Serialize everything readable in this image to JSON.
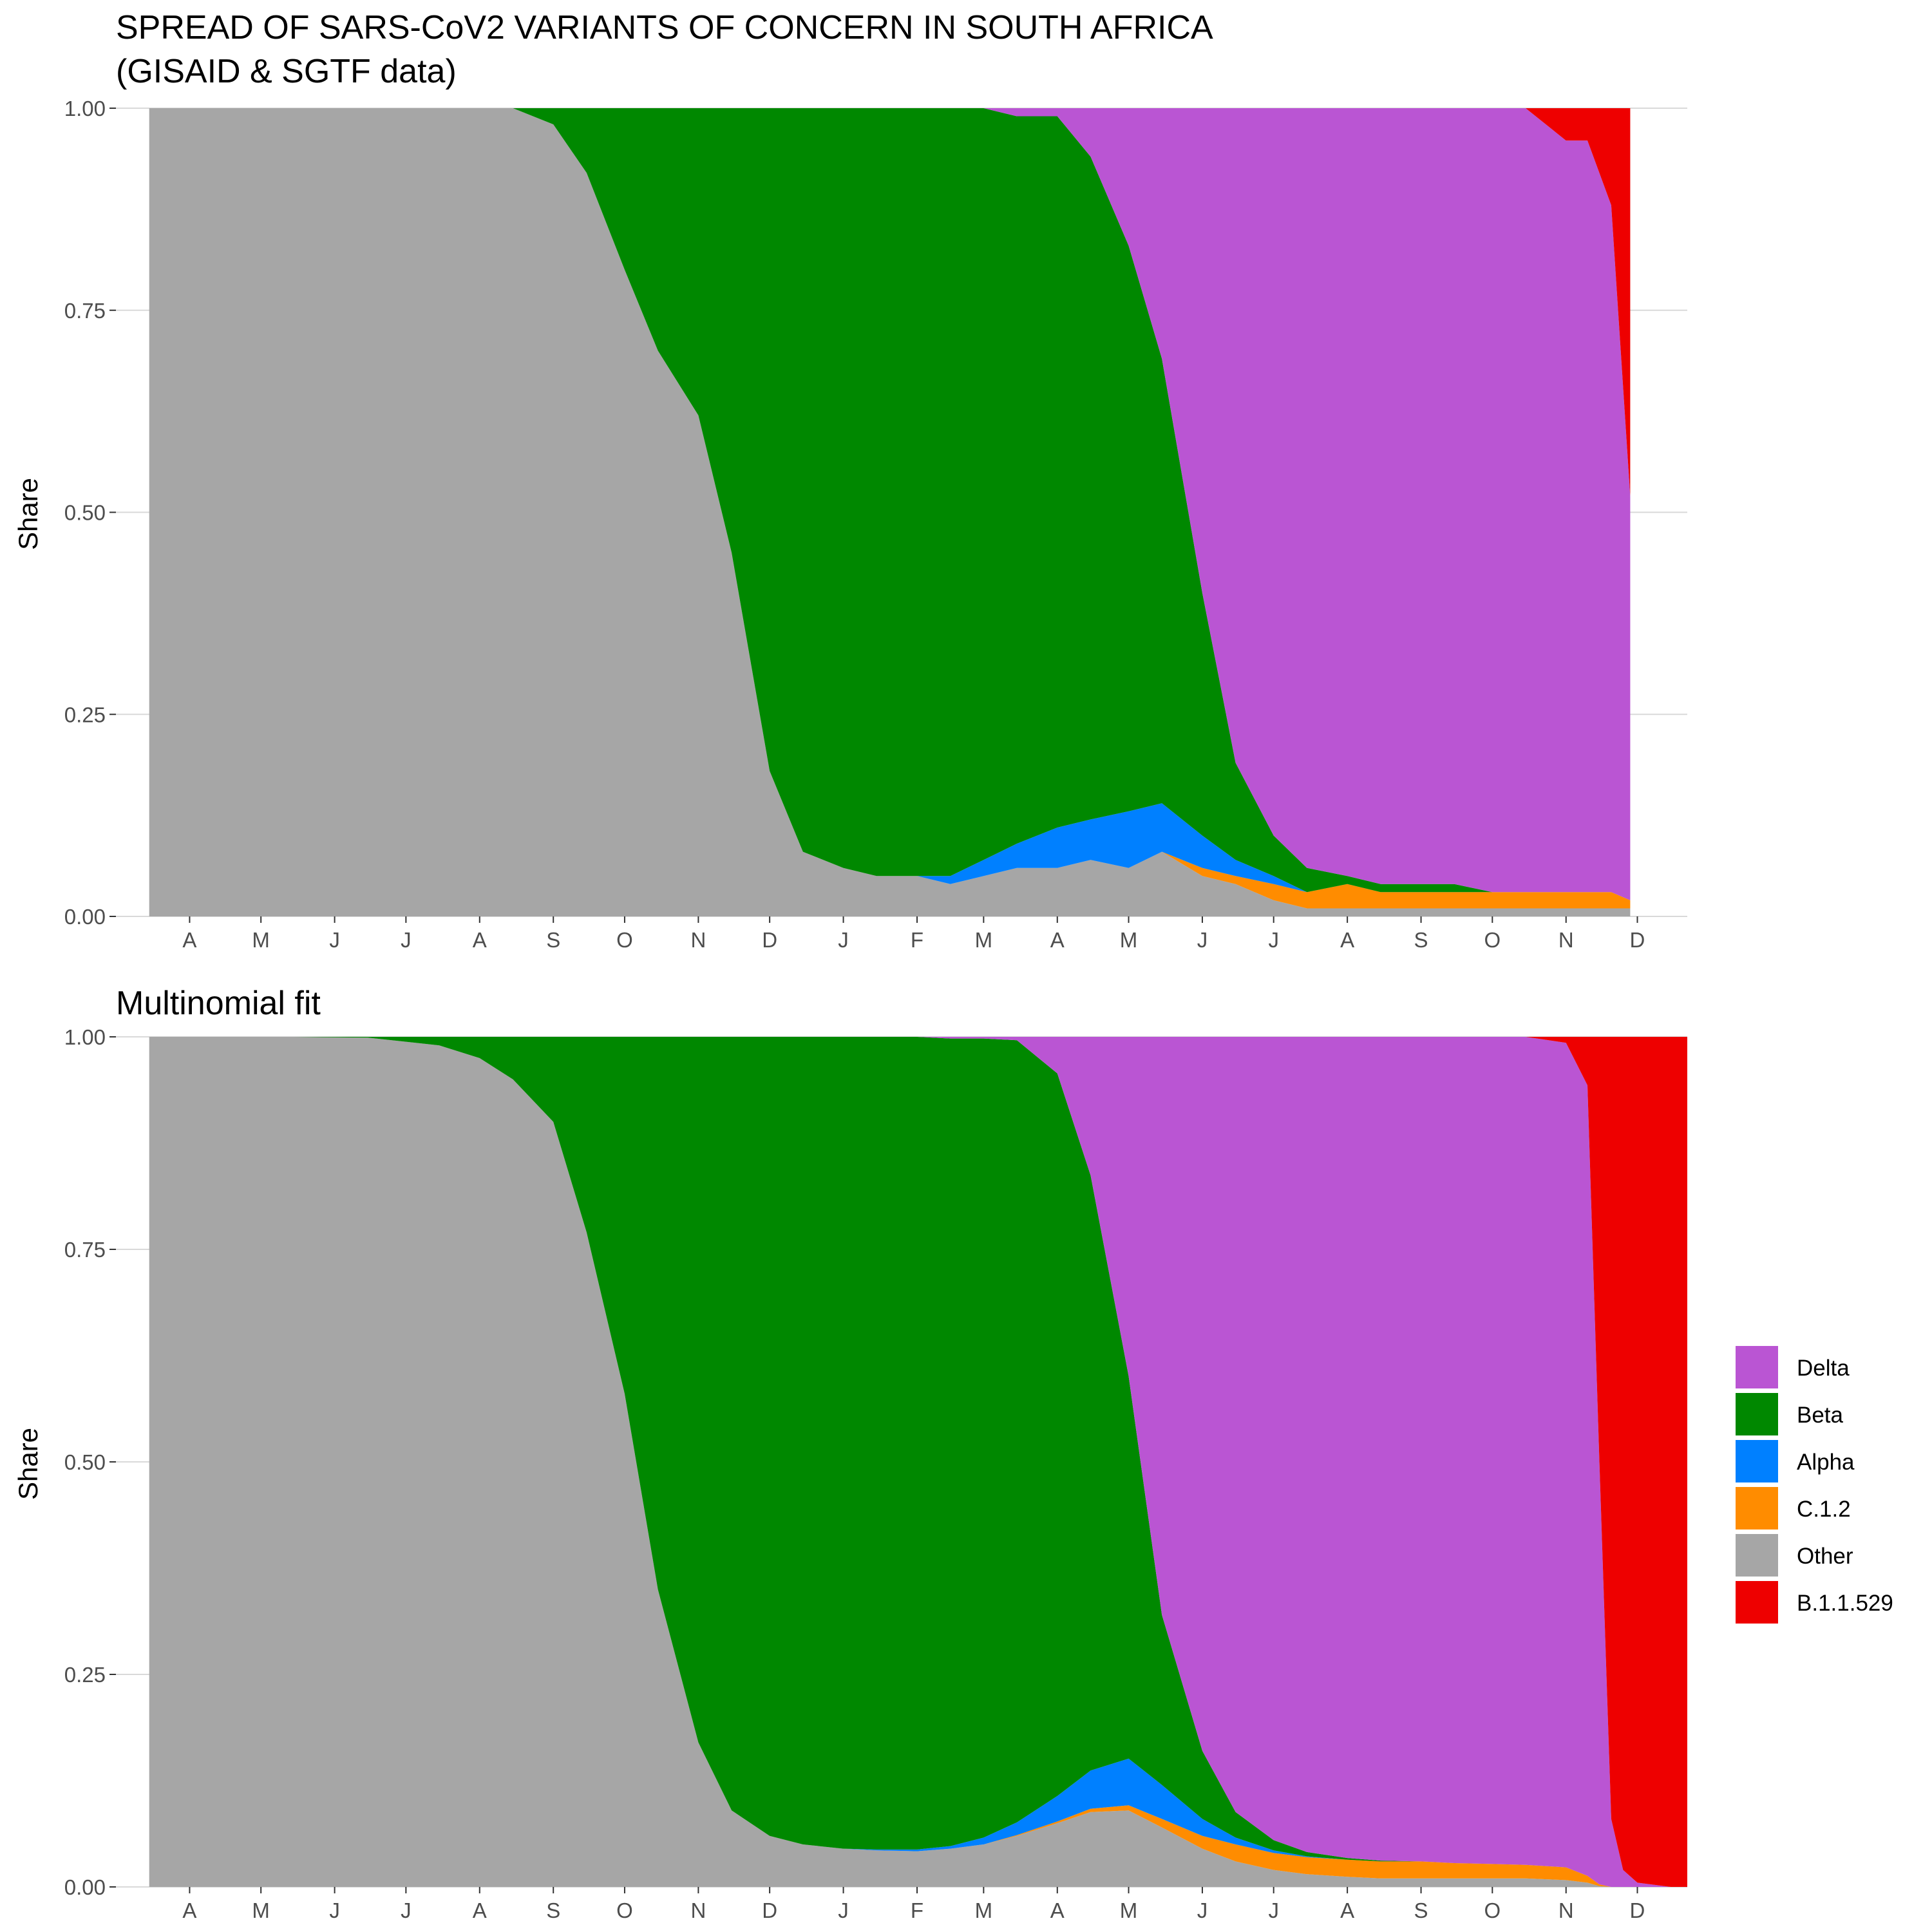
{
  "chart_data": [
    {
      "type": "area",
      "stacked": "fill",
      "title": "SPREAD OF SARS-CoV2 VARIANTS OF CONCERN IN SOUTH AFRICA",
      "subtitle": "(GISAID & SGTF data)",
      "xlabel": "",
      "ylabel": "Share",
      "ylim": [
        0,
        1
      ],
      "yticks": [
        "0.00",
        "0.25",
        "0.50",
        "0.75",
        "1.00"
      ],
      "xticks": [
        "A",
        "M",
        "J",
        "J",
        "A",
        "S",
        "O",
        "N",
        "D",
        "J",
        "F",
        "M",
        "A",
        "M",
        "J",
        "J",
        "A",
        "S",
        "O",
        "N",
        "D"
      ],
      "x": [
        "2020-03-15",
        "2020-04-15",
        "2020-05-15",
        "2020-06-15",
        "2020-07-15",
        "2020-08-15",
        "2020-09-01",
        "2020-09-15",
        "2020-10-01",
        "2020-10-15",
        "2020-11-01",
        "2020-11-15",
        "2020-12-01",
        "2020-12-15",
        "2021-01-01",
        "2021-01-15",
        "2021-02-01",
        "2021-02-15",
        "2021-03-01",
        "2021-03-15",
        "2021-04-01",
        "2021-04-15",
        "2021-05-01",
        "2021-05-15",
        "2021-06-01",
        "2021-06-15",
        "2021-07-01",
        "2021-07-15",
        "2021-08-01",
        "2021-08-15",
        "2021-09-01",
        "2021-09-15",
        "2021-10-01",
        "2021-10-15",
        "2021-11-01",
        "2021-11-10",
        "2021-11-20",
        "2021-11-28"
      ],
      "series": [
        {
          "name": "Other",
          "values": [
            1.0,
            1.0,
            1.0,
            1.0,
            1.0,
            1.0,
            0.98,
            0.92,
            0.8,
            0.7,
            0.62,
            0.45,
            0.18,
            0.08,
            0.06,
            0.05,
            0.05,
            0.04,
            0.05,
            0.06,
            0.06,
            0.07,
            0.06,
            0.08,
            0.05,
            0.04,
            0.02,
            0.01,
            0.01,
            0.01,
            0.01,
            0.01,
            0.01,
            0.01,
            0.01,
            0.01,
            0.01,
            0.01
          ]
        },
        {
          "name": "C.1.2",
          "values": [
            0,
            0,
            0,
            0,
            0,
            0,
            0,
            0,
            0,
            0,
            0,
            0,
            0,
            0,
            0,
            0,
            0,
            0,
            0,
            0,
            0,
            0,
            0,
            0,
            0.01,
            0.01,
            0.02,
            0.02,
            0.03,
            0.02,
            0.02,
            0.02,
            0.02,
            0.02,
            0.02,
            0.02,
            0.02,
            0.01
          ]
        },
        {
          "name": "Alpha",
          "values": [
            0,
            0,
            0,
            0,
            0,
            0,
            0,
            0,
            0,
            0,
            0,
            0,
            0,
            0,
            0,
            0,
            0,
            0.01,
            0.02,
            0.03,
            0.05,
            0.05,
            0.07,
            0.06,
            0.04,
            0.02,
            0.01,
            0,
            0,
            0,
            0,
            0,
            0,
            0,
            0,
            0,
            0,
            0
          ]
        },
        {
          "name": "Beta",
          "values": [
            0,
            0,
            0,
            0,
            0,
            0,
            0.02,
            0.08,
            0.2,
            0.3,
            0.38,
            0.55,
            0.82,
            0.92,
            0.94,
            0.95,
            0.95,
            0.95,
            0.93,
            0.9,
            0.88,
            0.82,
            0.7,
            0.55,
            0.3,
            0.12,
            0.05,
            0.03,
            0.01,
            0.01,
            0.01,
            0.01,
            0,
            0,
            0,
            0,
            0,
            0
          ]
        },
        {
          "name": "Delta",
          "values": [
            0,
            0,
            0,
            0,
            0,
            0,
            0,
            0,
            0,
            0,
            0,
            0,
            0,
            0,
            0,
            0,
            0,
            0,
            0,
            0.01,
            0.01,
            0.06,
            0.17,
            0.31,
            0.6,
            0.81,
            0.9,
            0.94,
            0.95,
            0.96,
            0.96,
            0.96,
            0.97,
            0.97,
            0.93,
            0.93,
            0.85,
            0.5
          ]
        },
        {
          "name": "B.1.1.529",
          "values": [
            0,
            0,
            0,
            0,
            0,
            0,
            0,
            0,
            0,
            0,
            0,
            0,
            0,
            0,
            0,
            0,
            0,
            0,
            0,
            0,
            0,
            0,
            0,
            0,
            0,
            0,
            0,
            0,
            0,
            0,
            0,
            0,
            0,
            0,
            0.04,
            0.04,
            0.12,
            0.48
          ]
        }
      ]
    },
    {
      "type": "area",
      "stacked": "fill",
      "title": "Multinomial fit",
      "xlabel": "",
      "ylabel": "Share",
      "ylim": [
        0,
        1
      ],
      "yticks": [
        "0.00",
        "0.25",
        "0.50",
        "0.75",
        "1.00"
      ],
      "xticks": [
        "A",
        "M",
        "J",
        "J",
        "A",
        "S",
        "O",
        "N",
        "D",
        "J",
        "F",
        "M",
        "A",
        "M",
        "J",
        "J",
        "A",
        "S",
        "O",
        "N",
        "D"
      ],
      "x": [
        "2020-03-15",
        "2020-04-15",
        "2020-05-15",
        "2020-06-15",
        "2020-07-15",
        "2020-08-01",
        "2020-08-15",
        "2020-09-01",
        "2020-09-15",
        "2020-10-01",
        "2020-10-15",
        "2020-11-01",
        "2020-11-15",
        "2020-12-01",
        "2020-12-15",
        "2021-01-01",
        "2021-01-15",
        "2021-02-01",
        "2021-02-15",
        "2021-03-01",
        "2021-03-15",
        "2021-04-01",
        "2021-04-15",
        "2021-05-01",
        "2021-05-15",
        "2021-06-01",
        "2021-06-15",
        "2021-07-01",
        "2021-07-15",
        "2021-08-01",
        "2021-08-15",
        "2021-09-01",
        "2021-09-15",
        "2021-10-01",
        "2021-10-15",
        "2021-11-01",
        "2021-11-10",
        "2021-11-15",
        "2021-11-20",
        "2021-11-25",
        "2021-12-01",
        "2021-12-15",
        "2021-12-22"
      ],
      "series": [
        {
          "name": "Other",
          "values": [
            1.0,
            1.0,
            1.0,
            0.999,
            0.99,
            0.975,
            0.95,
            0.9,
            0.77,
            0.58,
            0.35,
            0.17,
            0.09,
            0.06,
            0.05,
            0.045,
            0.043,
            0.042,
            0.045,
            0.05,
            0.06,
            0.075,
            0.088,
            0.09,
            0.07,
            0.045,
            0.03,
            0.02,
            0.015,
            0.012,
            0.01,
            0.01,
            0.01,
            0.01,
            0.01,
            0.008,
            0.005,
            0.001,
            0.0,
            0.0,
            0.0,
            0.0,
            0.0
          ]
        },
        {
          "name": "C.1.2",
          "values": [
            0,
            0,
            0,
            0,
            0,
            0,
            0,
            0,
            0,
            0,
            0,
            0,
            0,
            0,
            0,
            0,
            0,
            0,
            0,
            0,
            0.001,
            0.002,
            0.004,
            0.006,
            0.01,
            0.015,
            0.02,
            0.02,
            0.02,
            0.02,
            0.02,
            0.02,
            0.018,
            0.017,
            0.016,
            0.015,
            0.008,
            0.002,
            0.0,
            0.0,
            0.0,
            0.0,
            0.0
          ]
        },
        {
          "name": "Alpha",
          "values": [
            0,
            0,
            0,
            0,
            0,
            0,
            0,
            0,
            0,
            0,
            0,
            0,
            0,
            0,
            0,
            0,
            0.001,
            0.002,
            0.003,
            0.008,
            0.015,
            0.03,
            0.045,
            0.055,
            0.04,
            0.02,
            0.008,
            0.003,
            0.001,
            0,
            0,
            0,
            0,
            0,
            0,
            0,
            0,
            0,
            0,
            0,
            0,
            0,
            0
          ]
        },
        {
          "name": "Beta",
          "values": [
            0,
            0,
            0,
            0.001,
            0.01,
            0.025,
            0.05,
            0.1,
            0.23,
            0.42,
            0.65,
            0.83,
            0.91,
            0.94,
            0.95,
            0.955,
            0.956,
            0.956,
            0.95,
            0.94,
            0.92,
            0.85,
            0.7,
            0.45,
            0.2,
            0.08,
            0.03,
            0.012,
            0.005,
            0.002,
            0.001,
            0,
            0,
            0,
            0,
            0,
            0,
            0,
            0,
            0,
            0,
            0,
            0
          ]
        },
        {
          "name": "Delta",
          "values": [
            0,
            0,
            0,
            0,
            0,
            0,
            0,
            0,
            0,
            0,
            0,
            0,
            0,
            0,
            0,
            0,
            0,
            0,
            0.002,
            0.002,
            0.004,
            0.043,
            0.163,
            0.399,
            0.68,
            0.84,
            0.912,
            0.945,
            0.959,
            0.966,
            0.969,
            0.97,
            0.972,
            0.973,
            0.974,
            0.97,
            0.93,
            0.5,
            0.08,
            0.02,
            0.005,
            0.0,
            0.0
          ]
        },
        {
          "name": "B.1.1.529",
          "values": [
            0,
            0,
            0,
            0,
            0,
            0,
            0,
            0,
            0,
            0,
            0,
            0,
            0,
            0,
            0,
            0,
            0,
            0,
            0,
            0,
            0,
            0,
            0,
            0,
            0,
            0,
            0,
            0,
            0,
            0,
            0,
            0,
            0,
            0,
            0,
            0.007,
            0.057,
            0.497,
            0.92,
            0.98,
            0.995,
            1.0,
            1.0
          ]
        }
      ]
    }
  ],
  "legend": {
    "placement": "right",
    "items": [
      {
        "label": "Delta",
        "color": "#BA55D3"
      },
      {
        "label": "Beta",
        "color": "#008800"
      },
      {
        "label": "Alpha",
        "color": "#0080FF"
      },
      {
        "label": "C.1.2",
        "color": "#FF8C00"
      },
      {
        "label": "Other",
        "color": "#A6A6A6"
      },
      {
        "label": "B.1.1.529",
        "color": "#EE0000"
      }
    ]
  }
}
